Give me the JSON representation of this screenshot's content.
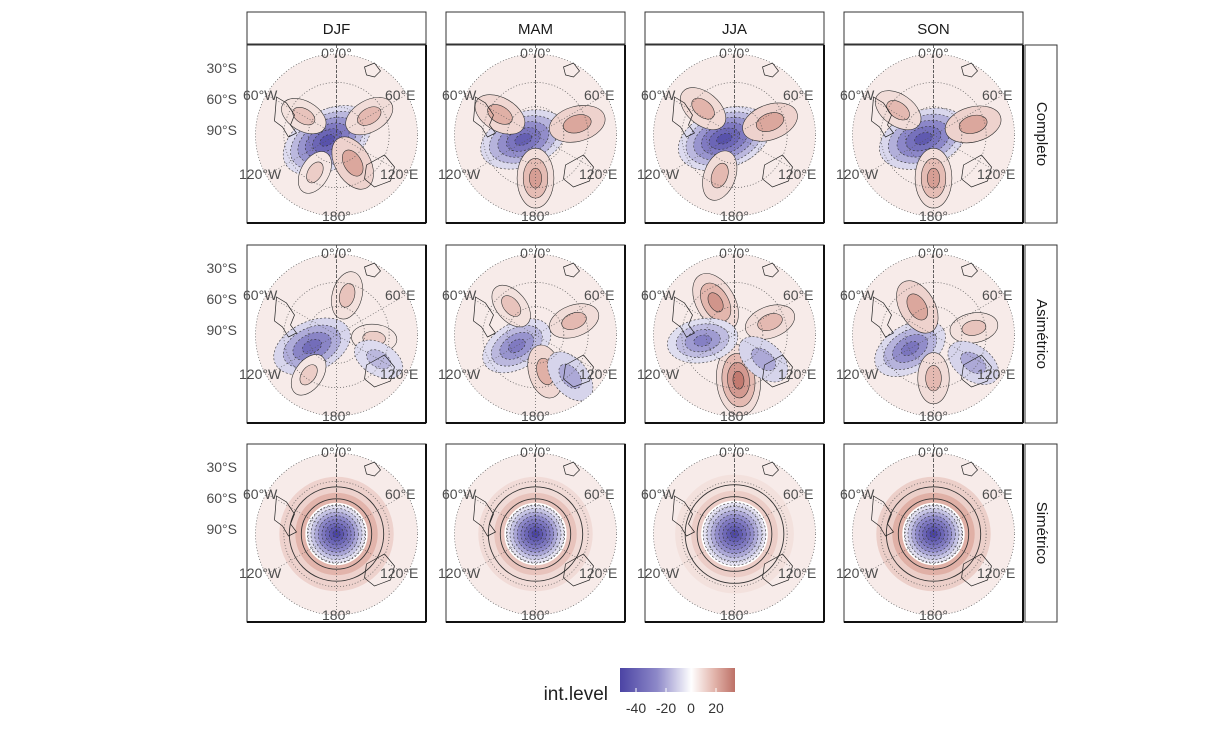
{
  "facets": {
    "columns": [
      "DJF",
      "MAM",
      "JJA",
      "SON"
    ],
    "rows": [
      "Completo",
      "Asimétrico",
      "Simétrico"
    ]
  },
  "axis": {
    "lat_labels": [
      "30°S",
      "60°S",
      "90°S"
    ],
    "lon_labels": {
      "top": "0°/0°",
      "left_upper": "60°W",
      "right_upper": "60°E",
      "left_lower": "120°W",
      "right_lower": "120°E",
      "bottom": "180°"
    }
  },
  "legend": {
    "title": "int.level",
    "ticks": [
      "-40",
      "-20",
      "0",
      "20"
    ],
    "gradient_colors": [
      "#4b44a4",
      "#8d88c8",
      "#ffffff",
      "#e2b4ab",
      "#bd7167"
    ]
  },
  "chart_data": {
    "type": "heatmap",
    "projection": "south polar stereographic",
    "variable": "int.level",
    "scale_range": [
      -50,
      30
    ],
    "columns": [
      "DJF",
      "MAM",
      "JJA",
      "SON"
    ],
    "rows": [
      "Completo",
      "Asimétrico",
      "Simétrico"
    ],
    "panels": [
      {
        "row": "Completo",
        "col": "DJF",
        "centers": [
          {
            "lon": 240,
            "colat": 10,
            "value": -45
          },
          {
            "lon": 150,
            "colat": 30,
            "value": 18
          },
          {
            "lon": 60,
            "colat": 35,
            "value": 14
          },
          {
            "lon": 210,
            "colat": 40,
            "value": 10
          },
          {
            "lon": 300,
            "colat": 35,
            "value": 12
          }
        ]
      },
      {
        "row": "Completo",
        "col": "MAM",
        "centers": [
          {
            "lon": 250,
            "colat": 12,
            "value": -40
          },
          {
            "lon": 300,
            "colat": 38,
            "value": 16
          },
          {
            "lon": 75,
            "colat": 40,
            "value": 18
          },
          {
            "lon": 180,
            "colat": 40,
            "value": 20
          }
        ]
      },
      {
        "row": "Completo",
        "col": "JJA",
        "centers": [
          {
            "lon": 250,
            "colat": 10,
            "value": -45
          },
          {
            "lon": 310,
            "colat": 38,
            "value": 15
          },
          {
            "lon": 70,
            "colat": 35,
            "value": 18
          },
          {
            "lon": 200,
            "colat": 40,
            "value": 14
          }
        ]
      },
      {
        "row": "Completo",
        "col": "SON",
        "centers": [
          {
            "lon": 250,
            "colat": 10,
            "value": -42
          },
          {
            "lon": 305,
            "colat": 40,
            "value": 14
          },
          {
            "lon": 75,
            "colat": 38,
            "value": 18
          },
          {
            "lon": 180,
            "colat": 40,
            "value": 20
          }
        ]
      },
      {
        "row": "Asimétrico",
        "col": "DJF",
        "centers": [
          {
            "lon": 245,
            "colat": 25,
            "value": -35
          },
          {
            "lon": 15,
            "colat": 38,
            "value": 12
          },
          {
            "lon": 95,
            "colat": 35,
            "value": 10
          },
          {
            "lon": 120,
            "colat": 45,
            "value": -15
          },
          {
            "lon": 215,
            "colat": 45,
            "value": 10
          }
        ]
      },
      {
        "row": "Asimétrico",
        "col": "MAM",
        "centers": [
          {
            "lon": 240,
            "colat": 20,
            "value": -30
          },
          {
            "lon": 320,
            "colat": 35,
            "value": 12
          },
          {
            "lon": 70,
            "colat": 38,
            "value": 14
          },
          {
            "lon": 165,
            "colat": 35,
            "value": 16
          },
          {
            "lon": 140,
            "colat": 50,
            "value": -18
          }
        ]
      },
      {
        "row": "Asimétrico",
        "col": "JJA",
        "centers": [
          {
            "lon": 330,
            "colat": 35,
            "value": 22
          },
          {
            "lon": 175,
            "colat": 42,
            "value": 28
          },
          {
            "lon": 70,
            "colat": 35,
            "value": 14
          },
          {
            "lon": 260,
            "colat": 30,
            "value": -28
          },
          {
            "lon": 130,
            "colat": 35,
            "value": -18
          }
        ]
      },
      {
        "row": "Asimétrico",
        "col": "SON",
        "centers": [
          {
            "lon": 240,
            "colat": 25,
            "value": -32
          },
          {
            "lon": 330,
            "colat": 30,
            "value": 18
          },
          {
            "lon": 80,
            "colat": 38,
            "value": 12
          },
          {
            "lon": 180,
            "colat": 40,
            "value": 14
          },
          {
            "lon": 125,
            "colat": 45,
            "value": -18
          }
        ]
      },
      {
        "row": "Simétrico",
        "col": "DJF",
        "centers": [
          {
            "lon": 0,
            "colat": 0,
            "value": -50
          },
          {
            "lon": 0,
            "colat": 40,
            "value": 15
          }
        ]
      },
      {
        "row": "Simétrico",
        "col": "MAM",
        "centers": [
          {
            "lon": 0,
            "colat": 0,
            "value": -50
          },
          {
            "lon": 0,
            "colat": 40,
            "value": 12
          }
        ]
      },
      {
        "row": "Simétrico",
        "col": "JJA",
        "centers": [
          {
            "lon": 0,
            "colat": 0,
            "value": -48
          },
          {
            "lon": 0,
            "colat": 42,
            "value": 10
          }
        ]
      },
      {
        "row": "Simétrico",
        "col": "SON",
        "centers": [
          {
            "lon": 0,
            "colat": 0,
            "value": -50
          },
          {
            "lon": 0,
            "colat": 40,
            "value": 16
          }
        ]
      }
    ]
  }
}
